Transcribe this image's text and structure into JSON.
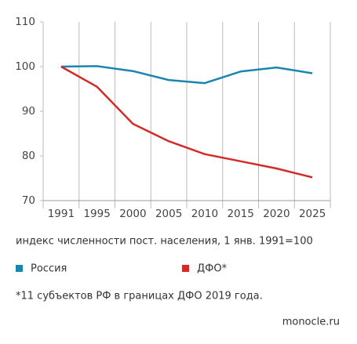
{
  "chart_data": {
    "type": "line",
    "categories": [
      "1991",
      "1995",
      "2000",
      "2005",
      "2010",
      "2015",
      "2020",
      "2025"
    ],
    "series": [
      {
        "name": "Россия",
        "color": "#1a86b0",
        "values": [
          100,
          100.1,
          99.0,
          97.0,
          96.3,
          98.9,
          99.8,
          98.5
        ]
      },
      {
        "name": "ДФО*",
        "color": "#d42a2a",
        "values": [
          100,
          95.5,
          87.2,
          83.3,
          80.4,
          78.8,
          77.2,
          75.2
        ]
      }
    ],
    "ylim": [
      70,
      110
    ],
    "yticks": [
      70,
      80,
      90,
      100,
      110
    ],
    "subtitle": "индекс численности пост. населения, 1 янв. 1991=100",
    "footnote": "*11 субъектов РФ в границах ДФО 2019 года.",
    "source": "monocle.ru"
  }
}
